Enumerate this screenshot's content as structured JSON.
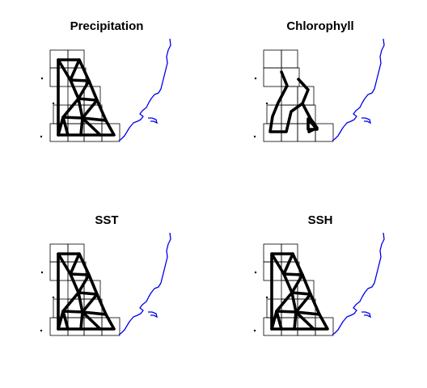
{
  "panels": [
    {
      "title": "Precipitation",
      "network": "full"
    },
    {
      "title": "Chlorophyll",
      "network": "partial"
    },
    {
      "title": "SST",
      "network": "full"
    },
    {
      "title": "SSH",
      "network": "full"
    }
  ],
  "colors": {
    "coast": "#0000ee",
    "network": "#000000",
    "grid": "#000000"
  }
}
